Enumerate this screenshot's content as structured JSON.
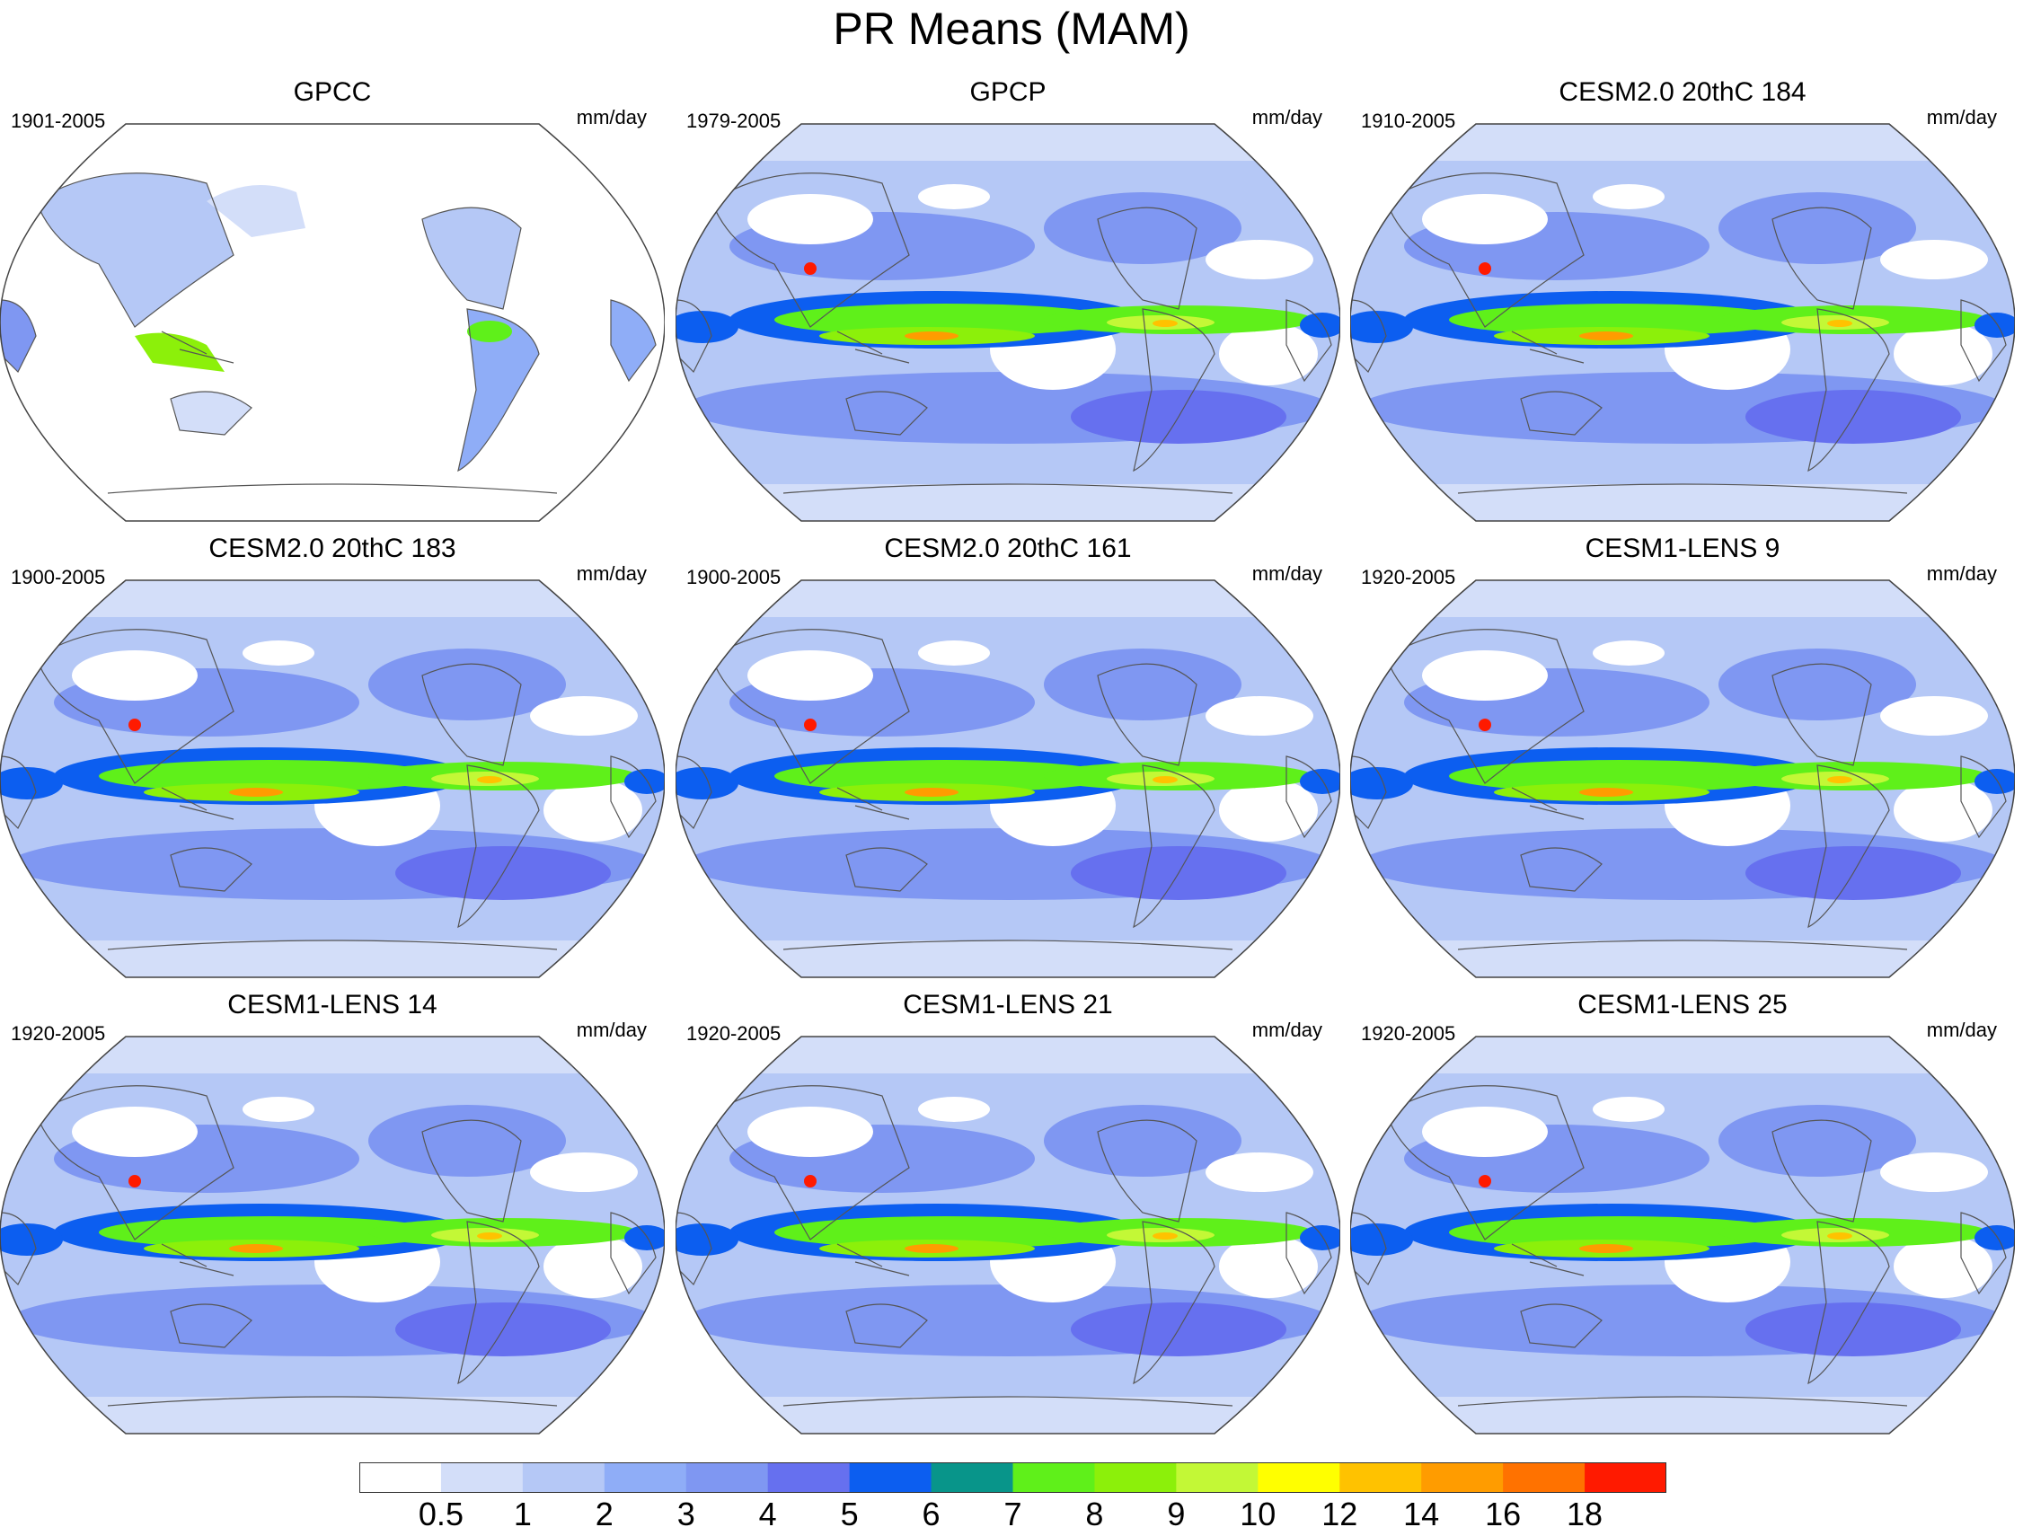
{
  "title": "PR Means (MAM)",
  "panels": [
    {
      "title": "GPCC",
      "period": "1901-2005",
      "units": "mm/day",
      "type": "obs-land"
    },
    {
      "title": "GPCP",
      "period": "1979-2005",
      "units": "mm/day",
      "type": "obs"
    },
    {
      "title": "CESM2.0 20thC 184",
      "period": "1910-2005",
      "units": "mm/day",
      "type": "model"
    },
    {
      "title": "CESM2.0 20thC 183",
      "period": "1900-2005",
      "units": "mm/day",
      "type": "model"
    },
    {
      "title": "CESM2.0 20thC 161",
      "period": "1900-2005",
      "units": "mm/day",
      "type": "model"
    },
    {
      "title": "CESM1-LENS 9",
      "period": "1920-2005",
      "units": "mm/day",
      "type": "model"
    },
    {
      "title": "CESM1-LENS 14",
      "period": "1920-2005",
      "units": "mm/day",
      "type": "model"
    },
    {
      "title": "CESM1-LENS 21",
      "period": "1920-2005",
      "units": "mm/day",
      "type": "model"
    },
    {
      "title": "CESM1-LENS 25",
      "period": "1920-2005",
      "units": "mm/day",
      "type": "model"
    }
  ],
  "colorbar": {
    "colors": [
      "#ffffff",
      "#d3def9",
      "#b5c8f6",
      "#8fadf7",
      "#7f97f2",
      "#6670ef",
      "#0c5ef0",
      "#08958a",
      "#5ff01a",
      "#8cf00a",
      "#c3f836",
      "#ffff00",
      "#ffc200",
      "#ff9c00",
      "#ff7200",
      "#ff1a00"
    ],
    "labels": [
      "0.5",
      "1",
      "2",
      "3",
      "4",
      "5",
      "6",
      "7",
      "8",
      "9",
      "10",
      "12",
      "14",
      "16",
      "18"
    ]
  }
}
